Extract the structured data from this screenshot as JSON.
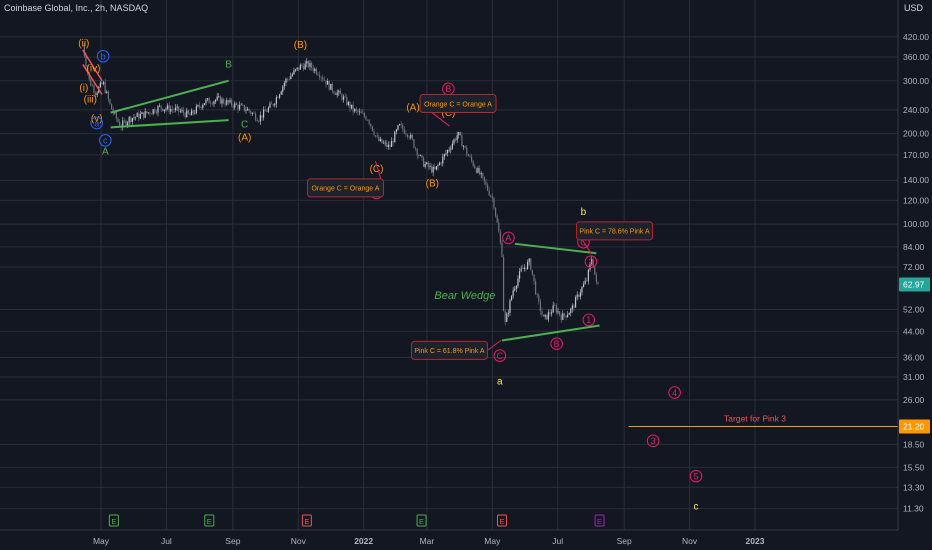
{
  "header": {
    "symbol_title": "Coinbase Global, Inc., 2h, NASDAQ",
    "currency": "USD"
  },
  "colors": {
    "background": "#131722",
    "grid": "#2a2e39",
    "axis_text": "#b2b5be",
    "candle": "#9aa0ac",
    "trend_line": "#4caf50",
    "orange": "#ff9800",
    "pink": "#e91e63",
    "blue": "#2962ff",
    "green_text": "#4caf50",
    "yellow": "#ffeb3b",
    "red_line": "#ef5350",
    "target_line": "#ff9800",
    "price_tag": "#26a69a",
    "target_tag": "#ff9800"
  },
  "chart_data": {
    "type": "candlestick",
    "y_scale": "log",
    "ylim": [
      10.6,
      520
    ],
    "x_ticks": [
      "May",
      "Jul",
      "Sep",
      "Nov",
      "2022",
      "Mar",
      "May",
      "Jul",
      "Sep",
      "Nov",
      "2023"
    ],
    "y_ticks": [
      "420.00",
      "360.00",
      "300.00",
      "240.00",
      "200.00",
      "170.00",
      "140.00",
      "120.00",
      "100.00",
      "84.00",
      "72.00",
      "62.97",
      "52.00",
      "44.00",
      "36.00",
      "31.00",
      "26.00",
      "21.20",
      "18.50",
      "15.50",
      "13.30",
      "11.30"
    ],
    "last_price": "62.97",
    "target_price": "21.20",
    "price_path": [
      [
        "2021-04-14",
        395
      ],
      [
        "2021-04-20",
        300
      ],
      [
        "2021-04-26",
        275
      ],
      [
        "2021-05-03",
        295
      ],
      [
        "2021-05-10",
        245
      ],
      [
        "2021-05-19",
        212
      ],
      [
        "2021-05-28",
        225
      ],
      [
        "2021-06-10",
        232
      ],
      [
        "2021-06-25",
        245
      ],
      [
        "2021-07-10",
        240
      ],
      [
        "2021-07-23",
        230
      ],
      [
        "2021-08-05",
        255
      ],
      [
        "2021-08-18",
        260
      ],
      [
        "2021-09-01",
        250
      ],
      [
        "2021-09-15",
        240
      ],
      [
        "2021-09-25",
        225
      ],
      [
        "2021-10-08",
        250
      ],
      [
        "2021-10-20",
        300
      ],
      [
        "2021-11-03",
        335
      ],
      [
        "2021-11-10",
        340
      ],
      [
        "2021-11-20",
        320
      ],
      [
        "2021-12-01",
        285
      ],
      [
        "2021-12-12",
        265
      ],
      [
        "2021-12-22",
        240
      ],
      [
        "2022-01-05",
        225
      ],
      [
        "2022-01-14",
        190
      ],
      [
        "2022-01-25",
        180
      ],
      [
        "2022-02-03",
        212
      ],
      [
        "2022-02-12",
        200
      ],
      [
        "2022-02-25",
        160
      ],
      [
        "2022-03-08",
        150
      ],
      [
        "2022-03-20",
        175
      ],
      [
        "2022-03-30",
        200
      ],
      [
        "2022-04-08",
        170
      ],
      [
        "2022-04-20",
        145
      ],
      [
        "2022-05-02",
        120
      ],
      [
        "2022-05-10",
        80
      ],
      [
        "2022-05-12",
        45
      ],
      [
        "2022-05-20",
        60
      ],
      [
        "2022-05-28",
        70
      ],
      [
        "2022-06-05",
        75
      ],
      [
        "2022-06-12",
        56
      ],
      [
        "2022-06-18",
        48
      ],
      [
        "2022-06-28",
        53
      ],
      [
        "2022-07-05",
        49
      ],
      [
        "2022-07-14",
        52
      ],
      [
        "2022-07-22",
        60
      ],
      [
        "2022-07-28",
        65
      ],
      [
        "2022-08-02",
        78
      ],
      [
        "2022-08-06",
        63
      ],
      [
        "2022-08-08",
        63
      ]
    ],
    "trend_lines": [
      {
        "name": "early-upper",
        "points": [
          [
            "2021-05-10",
            235
          ],
          [
            "2021-08-28",
            300
          ]
        ]
      },
      {
        "name": "early-lower",
        "points": [
          [
            "2021-05-10",
            210
          ],
          [
            "2021-08-28",
            222
          ]
        ]
      },
      {
        "name": "wedge-upper",
        "points": [
          [
            "2022-05-22",
            86
          ],
          [
            "2022-08-06",
            80
          ]
        ]
      },
      {
        "name": "wedge-lower",
        "points": [
          [
            "2022-05-10",
            41
          ],
          [
            "2022-08-09",
            46
          ]
        ]
      }
    ],
    "red_channel": [
      {
        "points": [
          [
            "2021-04-14",
            380
          ],
          [
            "2021-05-02",
            300
          ]
        ]
      },
      {
        "points": [
          [
            "2021-04-14",
            340
          ],
          [
            "2021-05-02",
            270
          ]
        ]
      }
    ],
    "target_line": {
      "from": "2022-09-05",
      "to": "2023-02-20",
      "price": 21.2,
      "label": "Target for Pink 3"
    },
    "wave_labels": [
      {
        "text": "(ii)",
        "date": "2021-04-15",
        "price": 400,
        "color": "orange",
        "circled": false
      },
      {
        "text": "(iv)",
        "date": "2021-04-24",
        "price": 330,
        "color": "orange",
        "circled": false
      },
      {
        "text": "(i)",
        "date": "2021-04-15",
        "price": 285,
        "color": "orange",
        "circled": false
      },
      {
        "text": "(iii)",
        "date": "2021-04-21",
        "price": 260,
        "color": "orange",
        "circled": false
      },
      {
        "text": "(v)",
        "date": "2021-04-27",
        "price": 225,
        "color": "orange",
        "circled": false
      },
      {
        "text": "b",
        "date": "2021-05-03",
        "price": 362,
        "color": "blue",
        "circled": true
      },
      {
        "text": "a",
        "date": "2021-04-27",
        "price": 217,
        "color": "blue",
        "circled": true
      },
      {
        "text": "c",
        "date": "2021-05-05",
        "price": 190,
        "color": "blue",
        "circled": true
      },
      {
        "text": "A",
        "date": "2021-05-05",
        "price": 175,
        "color": "green",
        "circled": false
      },
      {
        "text": "B",
        "date": "2021-08-28",
        "price": 340,
        "color": "green",
        "circled": false
      },
      {
        "text": "C",
        "date": "2021-09-12",
        "price": 215,
        "color": "green",
        "circled": false
      },
      {
        "text": "(A)",
        "date": "2021-09-12",
        "price": 195,
        "color": "orange",
        "circled": false
      },
      {
        "text": "(B)",
        "date": "2021-11-03",
        "price": 395,
        "color": "orange",
        "circled": false
      },
      {
        "text": "(A)",
        "date": "2022-02-16",
        "price": 245,
        "color": "orange",
        "circled": false
      },
      {
        "text": "(C)",
        "date": "2022-01-13",
        "price": 153,
        "color": "orange",
        "circled": false
      },
      {
        "text": "A",
        "date": "2022-01-13",
        "price": 127,
        "color": "pink",
        "circled": true
      },
      {
        "text": "(B)",
        "date": "2022-03-06",
        "price": 137,
        "color": "orange",
        "circled": false
      },
      {
        "text": "B",
        "date": "2022-03-21",
        "price": 282,
        "color": "pink",
        "circled": true
      },
      {
        "text": "(C)",
        "date": "2022-03-21",
        "price": 235,
        "color": "orange",
        "circled": false
      },
      {
        "text": "A",
        "date": "2022-05-16",
        "price": 90,
        "color": "pink",
        "circled": true
      },
      {
        "text": "C",
        "date": "2022-05-08",
        "price": 36.5,
        "color": "pink",
        "circled": true
      },
      {
        "text": "a",
        "date": "2022-05-08",
        "price": 30,
        "color": "yellow",
        "circled": false
      },
      {
        "text": "b",
        "date": "2022-07-25",
        "price": 110,
        "color": "yellow",
        "circled": false
      },
      {
        "text": "C",
        "date": "2022-07-25",
        "price": 87,
        "color": "pink",
        "circled": true
      },
      {
        "text": "2",
        "date": "2022-08-01",
        "price": 75,
        "color": "pink",
        "circled": true
      },
      {
        "text": "1",
        "date": "2022-07-30",
        "price": 48,
        "color": "pink",
        "circled": true
      },
      {
        "text": "B",
        "date": "2022-06-30",
        "price": 40,
        "color": "pink",
        "circled": true
      },
      {
        "text": "3",
        "date": "2022-09-28",
        "price": 19,
        "color": "pink",
        "circled": true
      },
      {
        "text": "4",
        "date": "2022-10-18",
        "price": 27.5,
        "color": "pink",
        "circled": true
      },
      {
        "text": "5",
        "date": "2022-11-07",
        "price": 14.5,
        "color": "pink",
        "circled": true
      },
      {
        "text": "c",
        "date": "2022-11-07",
        "price": 11.5,
        "color": "yellow",
        "circled": false
      }
    ],
    "annotations": [
      {
        "text": "Orange C = Orange A",
        "date": "2022-03-30",
        "price": 252,
        "arrow_to": [
          "2022-03-22",
          212
        ]
      },
      {
        "text": "Orange C = Orange A",
        "date": "2021-12-15",
        "price": 132,
        "arrow_to": [
          "2022-01-12",
          162
        ]
      },
      {
        "text": "Pink C = 78.6% Pink A",
        "date": "2022-08-23",
        "price": 95,
        "arrow_to": [
          "2022-08-01",
          80
        ]
      },
      {
        "text": "Pink C = 61.8% Pink A",
        "date": "2022-03-22",
        "price": 38,
        "arrow_to": [
          "2022-05-09",
          41
        ]
      }
    ],
    "pattern_label": {
      "text": "Bear Wedge",
      "date": "2022-05-22",
      "price": 58
    },
    "earnings_markers": [
      {
        "text": "E",
        "date": "2021-05-13",
        "color": "green"
      },
      {
        "text": "E",
        "date": "2021-08-10",
        "color": "green"
      },
      {
        "text": "E",
        "date": "2021-11-09",
        "color": "red"
      },
      {
        "text": "E",
        "date": "2022-02-24",
        "color": "green"
      },
      {
        "text": "E",
        "date": "2022-05-10",
        "color": "red"
      },
      {
        "text": "E",
        "date": "2022-08-09",
        "color": "purple"
      }
    ]
  }
}
